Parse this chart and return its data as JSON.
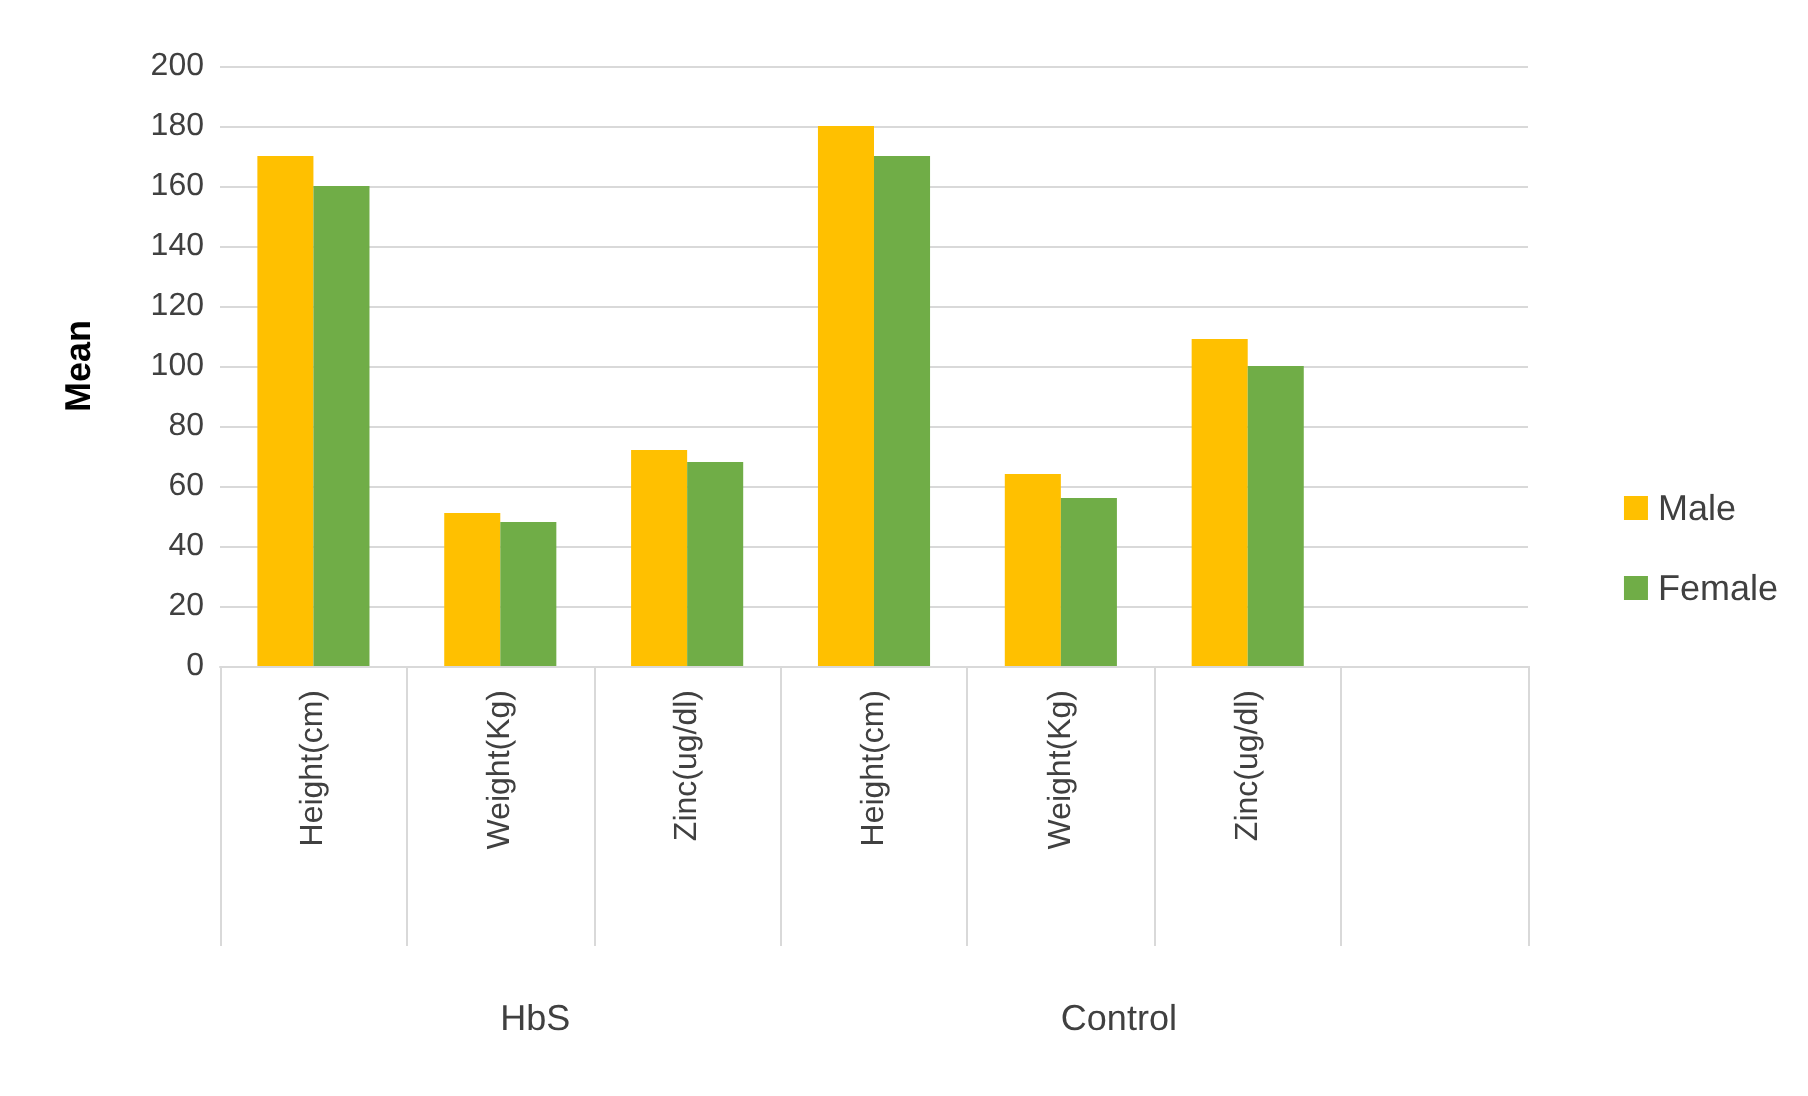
{
  "chart_data": {
    "type": "bar",
    "ylabel": "Mean",
    "categories": [
      "Height(cm)",
      "Weight(Kg)",
      "Zinc(ug/dl)",
      "Height(cm)",
      "Weight(Kg)",
      "Zinc(ug/dl)",
      null
    ],
    "series": [
      {
        "name": "Male",
        "color": "#ffc000",
        "values": [
          170,
          51,
          72,
          180,
          64,
          109,
          null
        ]
      },
      {
        "name": "Female",
        "color": "#70ad47",
        "values": [
          160,
          48,
          68,
          170,
          56,
          100,
          null
        ]
      }
    ],
    "annotations": [
      "HbS",
      "Control"
    ],
    "ylim": [
      0,
      200
    ],
    "yticks": [
      0,
      20,
      40,
      60,
      80,
      100,
      120,
      140,
      160,
      180,
      200
    ],
    "grid": "y",
    "legend": "right"
  }
}
